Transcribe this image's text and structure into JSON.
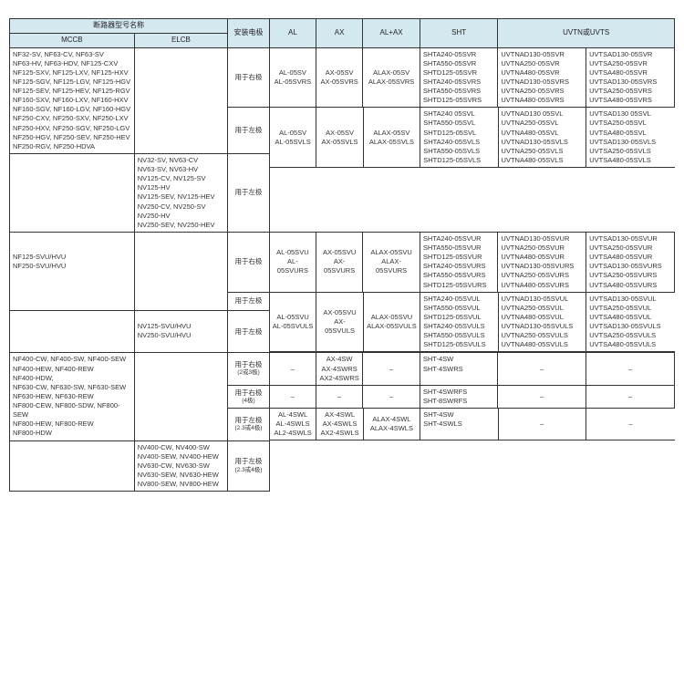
{
  "headers": {
    "breaker_model": "断路器型号名称",
    "mccb": "MCCB",
    "elcb": "ELCB",
    "pole": "安装电极",
    "al": "AL",
    "ax": "AX",
    "alax": "AL+AX",
    "sht": "SHT",
    "uvt": "UVTN或UVTS"
  },
  "labels": {
    "right_pole": "用于右极",
    "left_pole": "用于左极",
    "right_pole_23": "用于右极",
    "right_pole_23_sub": "(2或3极)",
    "right_pole_4": "用于右极",
    "right_pole_4_sub": "(4极)",
    "left_pole_234": "用于左极",
    "left_pole_234_sub": "(2.3或4极)",
    "left_pole_234b": "用于左极",
    "left_pole_234b_sub": "(2.3或4极)",
    "dash": "–"
  },
  "row1": {
    "mccb": "NF32-SV, NF63-CV, NF63-SV\nNF63-HV, NF63-HDV, NF125-CXV\nNF125-SXV, NF125-LXV, NF125-HXV\nNF125-SGV, NF125-LGV, NF125-HGV\nNF125-SEV, NF125-HEV, NF125-RGV\nNF160-SXV, NF160-LXV, NF160-HXV\nNF160-SGV, NF160-LGV, NF160-HGV\nNF250-CXV, NF250-SXV, NF250-LXV\nNF250-HXV, NF250-SGV, NF250-LGV\nNF250-HGV, NF250-SEV, NF250-HEV\nNF250-RGV, NF250-HDVA",
    "al": "AL-05SV\nAL-05SVRS",
    "ax": "AX-05SV\nAX-05SVRS",
    "alax": "ALAX-05SV\nALAX-05SVRS",
    "sht": "SHTA240-05SVR\nSHTA550-05SVR\nSHTD125-05SVR\nSHTA240-05SVRS\nSHTA550-05SVRS\nSHTD125-05SVRS",
    "uvt1": "UVTNAD130-05SVR\nUVTNA250-05SVR\nUVTNA480-05SVR\nUVTNAD130-05SVRS\nUVTNA250-05SVRS\nUVTNA480-05SVRS",
    "uvt2": "UVTSAD130-05SVR\nUVTSA250-05SVR\nUVTSA480-05SVR\nUVTSAD130-05SVRS\nUVTSA250-05SVRS\nUVTSA480-05SVRS"
  },
  "row2": {
    "elcb": "NV32-SV, NV63-CV\nNV63-SV, NV63-HV\nNV125-CV, NV125-SV\nNV125-HV\nNV125-SEV, NV125-HEV\nNV250-CV, NV250-SV\nNV250-HV\nNV250-SEV, NV250-HEV",
    "al": "AL-05SV\nAL-05SVLS",
    "ax": "AX-05SV\nAX-05SVLS",
    "alax": "ALAX-05SV\nALAX-05SVLS",
    "sht": "SHTA240 05SVL\nSHTA550-05SVL\nSHTD125-05SVL\nSHTA240-05SVLS\nSHTA550-05SVLS\nSHTD125-05SVLS",
    "uvt1": "UVTNAD130 05SVL\nUVTNA250-05SVL\nUVTNA480-05SVL\nUVTNAD130-05SVLS\nUVTNA250-05SVLS\nUVTNA480-05SVLS",
    "uvt2": "UVTSAD130 05SVL\nUVTSA250-05SVL\nUVTSA480-05SVL\nUVTSAD130-05SVLS\nUVTSA250-05SVLS\nUVTSA480-05SVLS"
  },
  "row3": {
    "mccb": "NF125-SVU/HVU\nNF250-SVU/HVU",
    "al": "AL-05SVU\nAL-05SVURS",
    "ax": "AX-05SVU\nAX-05SVURS",
    "alax": "ALAX-05SVU\nALAX-05SVURS",
    "sht": "SHTA240-05SVUR\nSHTA550-05SVUR\nSHTD125-05SVUR\nSHTA240-05SVURS\nSHTA550-05SVURS\nSHTD125-05SVURS",
    "uvt1": "UVTNAD130-05SVUR\nUVTNA250-05SVUR\nUVTNA480-05SVUR\nUVTNAD130-05SVURS\nUVTNA250-05SVURS\nUVTNA480-05SVURS",
    "uvt2": "UVTSAD130-05SVUR\nUVTSA250-05SVUR\nUVTSA480-05SVUR\nUVTSAD130-05SVURS\nUVTSA250-05SVURS\nUVTSA480-05SVURS"
  },
  "row4": {
    "elcb": "NV125-SVU/HVU\nNV250-SVU/HVU",
    "al": "AL-05SVU\nAL-05SVULS",
    "ax": "AX-05SVU\nAX-05SVULS",
    "alax": "ALAX-05SVU\nALAX-05SVULS",
    "sht": "SHTA240-05SVUL\nSHTA550-05SVUL\nSHTD125-05SVUL\nSHTA240-05SVULS\nSHTA550-05SVULS\nSHTD125-05SVULS",
    "uvt1": "UVTNAD130-05SVUL\nUVTNA250-05SVUL\nUVTNA480-05SVUL\nUVTNAD130-05SVULS\nUVTNA250-05SVULS\nUVTNA480-05SVULS",
    "uvt2": "UVTSAD130-05SVUL\nUVTSA250-05SVUL\nUVTSA480-05SVUL\nUVTSAD130-05SVULS\nUVTSA250-05SVULS\nUVTSA480-05SVULS"
  },
  "row5": {
    "mccb": "NF400-CW, NF400-SW, NF400-SEW\nNF400-HEW, NF400-REW\nNF400-HDW,\nNF630-CW, NF630-SW, NF630-SEW\nNF630-HEW, NF630-REW\nNF800-CEW, NF800-SDW, NF800-SEW\nNF800-HEW, NF800-REW\nNF800-HDW",
    "ax1": "AX-4SW\nAX-4SWRS\nAX2-4SWRS",
    "sht1": "SHT-4SW\nSHT-4SWRS",
    "sht2": "SHT-4SWRFS\nSHT-8SWRFS",
    "al3": "AL-4SWL\nAL-4SWLS\nAL2-4SWLS",
    "ax3": "AX-4SWL\nAX-4SWLS\nAX2-4SWLS",
    "alax3": "ALAX-4SWL\nALAX-4SWLS"
  },
  "row6": {
    "elcb": "NV400-CW, NV400-SW\nNV400-SEW, NV400-HEW\nNV630-CW, NV630-SW\nNV630-SEW, NV630-HEW\nNV800-SEW, NV800-HEW",
    "al": "AL-4SWL\nAL-4SWLS\nAL2-4SWLS",
    "ax": "AX-4SWL\nAX-4SWLS\nAX2-4SWLS",
    "alax": "ALAX-4SWL\nALAX-4SWLS",
    "sht": "SHT-4SW\nSHT-4SWLS"
  }
}
